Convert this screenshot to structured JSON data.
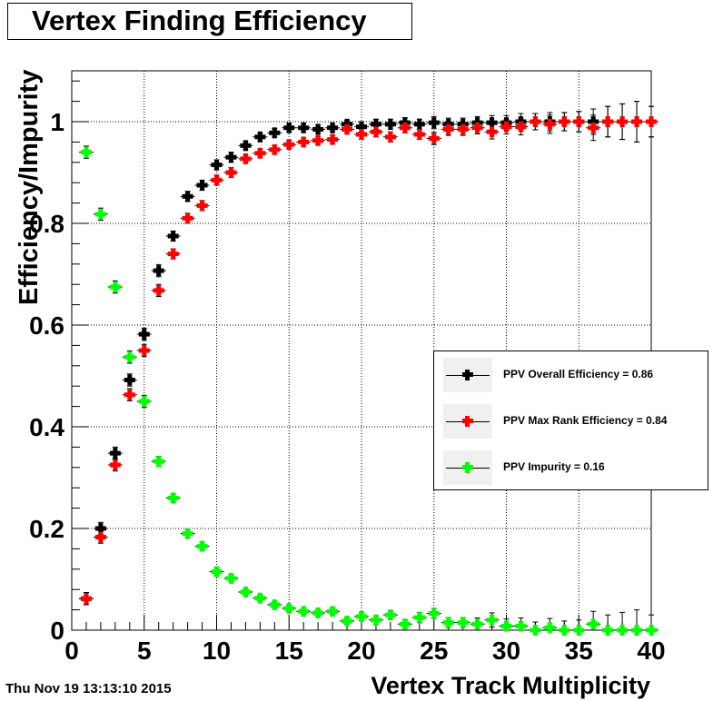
{
  "title": "Vertex Finding Efficiency",
  "timestamp": "Thu Nov 19 13:13:10 2015",
  "colors": {
    "overall": "#000000",
    "maxrank": "#ff0000",
    "impurity": "#00ff00",
    "axis": "#000000",
    "grid": "#000000",
    "legend_swatch_bg": "#f0f0f0"
  },
  "legend": [
    {
      "label": "PPV Overall Efficiency = 0.86",
      "color": "#000000"
    },
    {
      "label": "PPV Max Rank Efficiency = 0.84",
      "color": "#ff0000"
    },
    {
      "label": "PPV Impurity = 0.16",
      "color": "#00ff00"
    }
  ],
  "chart_data": {
    "type": "scatter",
    "title": "Vertex Finding Efficiency",
    "xlabel": "Vertex Track Multiplicity",
    "ylabel": "Efficiency/Impurity",
    "xlim": [
      0,
      40
    ],
    "ylim": [
      0,
      1.1
    ],
    "x_ticks": [
      0,
      5,
      10,
      15,
      20,
      25,
      30,
      35,
      40
    ],
    "x_tick_labels": [
      "0",
      "5",
      "10",
      "15",
      "20",
      "25",
      "30",
      "35",
      "40"
    ],
    "y_ticks": [
      0,
      0.2,
      0.4,
      0.6,
      0.8,
      1
    ],
    "y_tick_labels": [
      "0",
      "0.2",
      "0.4",
      "0.6",
      "0.8",
      "1"
    ],
    "grid": true,
    "legend_position": "right",
    "x_bin_halfwidth": 0.5,
    "series": [
      {
        "name": "PPV Overall Efficiency = 0.86",
        "color": "#000000",
        "points": [
          {
            "x": 1,
            "y": 0.062,
            "err": 0.012
          },
          {
            "x": 2,
            "y": 0.2,
            "err": 0.012
          },
          {
            "x": 3,
            "y": 0.348,
            "err": 0.012
          },
          {
            "x": 4,
            "y": 0.492,
            "err": 0.012
          },
          {
            "x": 5,
            "y": 0.582,
            "err": 0.012
          },
          {
            "x": 6,
            "y": 0.707,
            "err": 0.012
          },
          {
            "x": 7,
            "y": 0.775,
            "err": 0.01
          },
          {
            "x": 8,
            "y": 0.853,
            "err": 0.01
          },
          {
            "x": 9,
            "y": 0.875,
            "err": 0.01
          },
          {
            "x": 10,
            "y": 0.915,
            "err": 0.01
          },
          {
            "x": 11,
            "y": 0.93,
            "err": 0.01
          },
          {
            "x": 12,
            "y": 0.953,
            "err": 0.008
          },
          {
            "x": 13,
            "y": 0.97,
            "err": 0.008
          },
          {
            "x": 14,
            "y": 0.978,
            "err": 0.008
          },
          {
            "x": 15,
            "y": 0.988,
            "err": 0.008
          },
          {
            "x": 16,
            "y": 0.988,
            "err": 0.008
          },
          {
            "x": 17,
            "y": 0.985,
            "err": 0.008
          },
          {
            "x": 18,
            "y": 0.988,
            "err": 0.008
          },
          {
            "x": 19,
            "y": 0.995,
            "err": 0.008
          },
          {
            "x": 20,
            "y": 0.99,
            "err": 0.01
          },
          {
            "x": 21,
            "y": 0.995,
            "err": 0.01
          },
          {
            "x": 22,
            "y": 0.995,
            "err": 0.01
          },
          {
            "x": 23,
            "y": 0.998,
            "err": 0.01
          },
          {
            "x": 24,
            "y": 0.995,
            "err": 0.01
          },
          {
            "x": 25,
            "y": 0.998,
            "err": 0.012
          },
          {
            "x": 26,
            "y": 0.995,
            "err": 0.012
          },
          {
            "x": 27,
            "y": 0.995,
            "err": 0.012
          },
          {
            "x": 28,
            "y": 0.998,
            "err": 0.012
          },
          {
            "x": 29,
            "y": 0.998,
            "err": 0.014
          },
          {
            "x": 30,
            "y": 0.998,
            "err": 0.014
          },
          {
            "x": 31,
            "y": 1.0,
            "err": 0.016
          },
          {
            "x": 32,
            "y": 1.0,
            "err": 0.016
          },
          {
            "x": 33,
            "y": 1.0,
            "err": 0.018
          },
          {
            "x": 34,
            "y": 1.0,
            "err": 0.018
          },
          {
            "x": 35,
            "y": 1.0,
            "err": 0.02
          },
          {
            "x": 36,
            "y": 1.0,
            "err": 0.025
          },
          {
            "x": 37,
            "y": 1.0,
            "err": 0.03
          },
          {
            "x": 38,
            "y": 1.0,
            "err": 0.035
          },
          {
            "x": 39,
            "y": 1.0,
            "err": 0.04
          },
          {
            "x": 40,
            "y": 1.0,
            "err": 0.03
          }
        ]
      },
      {
        "name": "PPV Max Rank Efficiency = 0.84",
        "color": "#ff0000",
        "points": [
          {
            "x": 1,
            "y": 0.062,
            "err": 0.012
          },
          {
            "x": 2,
            "y": 0.183,
            "err": 0.012
          },
          {
            "x": 3,
            "y": 0.325,
            "err": 0.012
          },
          {
            "x": 4,
            "y": 0.463,
            "err": 0.012
          },
          {
            "x": 5,
            "y": 0.55,
            "err": 0.012
          },
          {
            "x": 6,
            "y": 0.668,
            "err": 0.012
          },
          {
            "x": 7,
            "y": 0.74,
            "err": 0.01
          },
          {
            "x": 8,
            "y": 0.81,
            "err": 0.01
          },
          {
            "x": 9,
            "y": 0.835,
            "err": 0.01
          },
          {
            "x": 10,
            "y": 0.885,
            "err": 0.01
          },
          {
            "x": 11,
            "y": 0.9,
            "err": 0.01
          },
          {
            "x": 12,
            "y": 0.927,
            "err": 0.008
          },
          {
            "x": 13,
            "y": 0.938,
            "err": 0.008
          },
          {
            "x": 14,
            "y": 0.945,
            "err": 0.008
          },
          {
            "x": 15,
            "y": 0.955,
            "err": 0.008
          },
          {
            "x": 16,
            "y": 0.96,
            "err": 0.008
          },
          {
            "x": 17,
            "y": 0.963,
            "err": 0.008
          },
          {
            "x": 18,
            "y": 0.965,
            "err": 0.008
          },
          {
            "x": 19,
            "y": 0.985,
            "err": 0.008
          },
          {
            "x": 20,
            "y": 0.975,
            "err": 0.01
          },
          {
            "x": 21,
            "y": 0.98,
            "err": 0.01
          },
          {
            "x": 22,
            "y": 0.97,
            "err": 0.01
          },
          {
            "x": 23,
            "y": 0.988,
            "err": 0.01
          },
          {
            "x": 24,
            "y": 0.975,
            "err": 0.01
          },
          {
            "x": 25,
            "y": 0.967,
            "err": 0.012
          },
          {
            "x": 26,
            "y": 0.985,
            "err": 0.012
          },
          {
            "x": 27,
            "y": 0.985,
            "err": 0.012
          },
          {
            "x": 28,
            "y": 0.988,
            "err": 0.012
          },
          {
            "x": 29,
            "y": 0.98,
            "err": 0.014
          },
          {
            "x": 30,
            "y": 0.99,
            "err": 0.014
          },
          {
            "x": 31,
            "y": 0.99,
            "err": 0.016
          },
          {
            "x": 32,
            "y": 1.0,
            "err": 0.016
          },
          {
            "x": 33,
            "y": 0.995,
            "err": 0.018
          },
          {
            "x": 34,
            "y": 1.0,
            "err": 0.018
          },
          {
            "x": 35,
            "y": 1.0,
            "err": 0.02
          },
          {
            "x": 36,
            "y": 0.988,
            "err": 0.025
          },
          {
            "x": 37,
            "y": 1.0,
            "err": 0.03
          },
          {
            "x": 38,
            "y": 1.0,
            "err": 0.035
          },
          {
            "x": 39,
            "y": 1.0,
            "err": 0.04
          },
          {
            "x": 40,
            "y": 1.0,
            "err": 0.03
          }
        ]
      },
      {
        "name": "PPV Impurity = 0.16",
        "color": "#00ff00",
        "points": [
          {
            "x": 1,
            "y": 0.94,
            "err": 0.012
          },
          {
            "x": 2,
            "y": 0.818,
            "err": 0.012
          },
          {
            "x": 3,
            "y": 0.675,
            "err": 0.012
          },
          {
            "x": 4,
            "y": 0.537,
            "err": 0.012
          },
          {
            "x": 5,
            "y": 0.45,
            "err": 0.012
          },
          {
            "x": 6,
            "y": 0.332,
            "err": 0.01
          },
          {
            "x": 7,
            "y": 0.26,
            "err": 0.008
          },
          {
            "x": 8,
            "y": 0.19,
            "err": 0.008
          },
          {
            "x": 9,
            "y": 0.165,
            "err": 0.008
          },
          {
            "x": 10,
            "y": 0.115,
            "err": 0.007
          },
          {
            "x": 11,
            "y": 0.102,
            "err": 0.007
          },
          {
            "x": 12,
            "y": 0.075,
            "err": 0.006
          },
          {
            "x": 13,
            "y": 0.063,
            "err": 0.006
          },
          {
            "x": 14,
            "y": 0.05,
            "err": 0.006
          },
          {
            "x": 15,
            "y": 0.043,
            "err": 0.006
          },
          {
            "x": 16,
            "y": 0.037,
            "err": 0.006
          },
          {
            "x": 17,
            "y": 0.034,
            "err": 0.006
          },
          {
            "x": 18,
            "y": 0.037,
            "err": 0.006
          },
          {
            "x": 19,
            "y": 0.018,
            "err": 0.006
          },
          {
            "x": 20,
            "y": 0.027,
            "err": 0.008
          },
          {
            "x": 21,
            "y": 0.02,
            "err": 0.008
          },
          {
            "x": 22,
            "y": 0.03,
            "err": 0.008
          },
          {
            "x": 23,
            "y": 0.012,
            "err": 0.008
          },
          {
            "x": 24,
            "y": 0.025,
            "err": 0.01
          },
          {
            "x": 25,
            "y": 0.033,
            "err": 0.01
          },
          {
            "x": 26,
            "y": 0.015,
            "err": 0.01
          },
          {
            "x": 27,
            "y": 0.015,
            "err": 0.01
          },
          {
            "x": 28,
            "y": 0.012,
            "err": 0.012
          },
          {
            "x": 29,
            "y": 0.02,
            "err": 0.014
          },
          {
            "x": 30,
            "y": 0.008,
            "err": 0.014
          },
          {
            "x": 31,
            "y": 0.008,
            "err": 0.016
          },
          {
            "x": 32,
            "y": 0.0,
            "err": 0.016
          },
          {
            "x": 33,
            "y": 0.005,
            "err": 0.018
          },
          {
            "x": 34,
            "y": 0.0,
            "err": 0.018
          },
          {
            "x": 35,
            "y": 0.0,
            "err": 0.02
          },
          {
            "x": 36,
            "y": 0.012,
            "err": 0.025
          },
          {
            "x": 37,
            "y": 0.0,
            "err": 0.03
          },
          {
            "x": 38,
            "y": 0.0,
            "err": 0.035
          },
          {
            "x": 39,
            "y": 0.0,
            "err": 0.04
          },
          {
            "x": 40,
            "y": 0.0,
            "err": 0.03
          }
        ]
      }
    ]
  }
}
